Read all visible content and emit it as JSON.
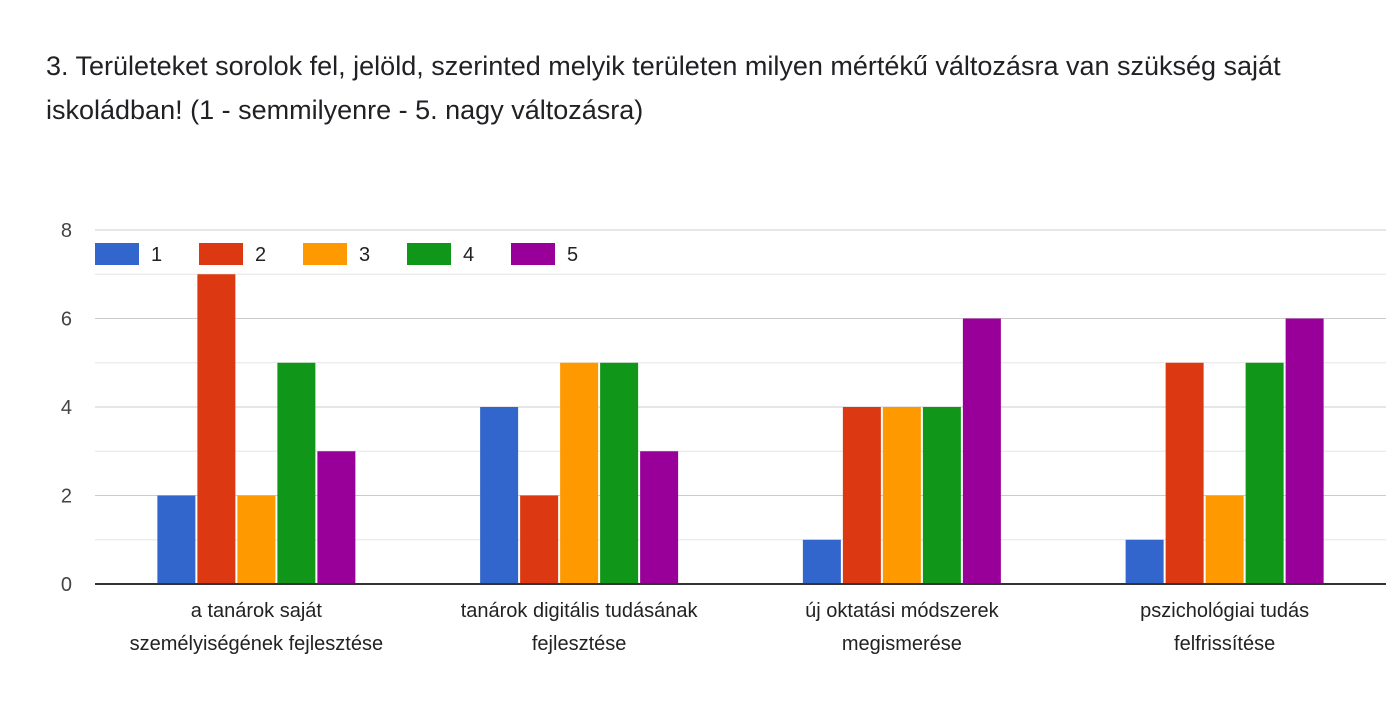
{
  "question": {
    "title": "3. Területeket sorolok fel, jelöld, szerinted melyik területen milyen mértékű változásra van szükség saját iskoládban! (1 - semmilyenre - 5. nagy változásra)"
  },
  "colors": {
    "series": [
      "#3366cc",
      "#dc3912",
      "#ff9900",
      "#109618",
      "#990099"
    ],
    "gridline": "#cccccc",
    "axis": "#333333"
  },
  "chart_data": {
    "type": "bar",
    "title": "",
    "xlabel": "",
    "ylabel": "",
    "ylim": [
      0,
      8
    ],
    "yticks": [
      "0",
      "2",
      "4",
      "6",
      "8"
    ],
    "grid": true,
    "legend_position": "top-left",
    "categories": [
      [
        "a tanárok saját",
        "személyiségének fejlesztése"
      ],
      [
        "tanárok digitális tudásának",
        "fejlesztése"
      ],
      [
        "új oktatási módszerek",
        "megismerése"
      ],
      [
        "pszichológiai tudás",
        "felfrissítése"
      ]
    ],
    "series": [
      {
        "name": "1",
        "values": [
          2,
          4,
          1,
          1
        ]
      },
      {
        "name": "2",
        "values": [
          7,
          2,
          4,
          5
        ]
      },
      {
        "name": "3",
        "values": [
          2,
          5,
          4,
          2
        ]
      },
      {
        "name": "4",
        "values": [
          5,
          5,
          4,
          5
        ]
      },
      {
        "name": "5",
        "values": [
          3,
          3,
          6,
          6
        ]
      }
    ]
  }
}
